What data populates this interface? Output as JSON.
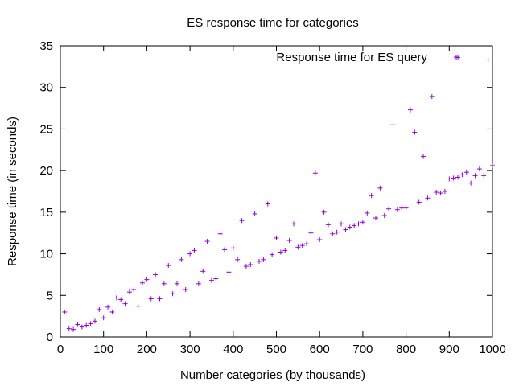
{
  "chart_data": {
    "type": "scatter",
    "title": "ES response time for categories",
    "xlabel": "Number categories (by thousands)",
    "ylabel": "Response time (in seconds)",
    "xlim": [
      0,
      1000
    ],
    "ylim": [
      0,
      35
    ],
    "x_ticks": [
      0,
      100,
      200,
      300,
      400,
      500,
      600,
      700,
      800,
      900,
      1000
    ],
    "y_ticks": [
      0,
      5,
      10,
      15,
      20,
      25,
      30,
      35
    ],
    "grid": false,
    "legend_position": "top-right",
    "series": [
      {
        "name": "Response time for ES query",
        "color": "#9400d3",
        "marker": "plus",
        "points": [
          [
            10,
            3.0
          ],
          [
            20,
            1.0
          ],
          [
            30,
            0.9
          ],
          [
            40,
            1.5
          ],
          [
            50,
            1.2
          ],
          [
            60,
            1.4
          ],
          [
            70,
            1.6
          ],
          [
            80,
            1.9
          ],
          [
            90,
            3.3
          ],
          [
            100,
            2.3
          ],
          [
            110,
            3.6
          ],
          [
            120,
            3.0
          ],
          [
            130,
            4.7
          ],
          [
            140,
            4.5
          ],
          [
            150,
            4.0
          ],
          [
            160,
            5.4
          ],
          [
            170,
            5.7
          ],
          [
            180,
            3.7
          ],
          [
            190,
            6.5
          ],
          [
            200,
            6.9
          ],
          [
            210,
            4.6
          ],
          [
            220,
            7.5
          ],
          [
            230,
            4.6
          ],
          [
            240,
            6.4
          ],
          [
            250,
            8.6
          ],
          [
            260,
            5.2
          ],
          [
            270,
            6.4
          ],
          [
            280,
            9.3
          ],
          [
            290,
            5.7
          ],
          [
            300,
            10.0
          ],
          [
            310,
            10.4
          ],
          [
            320,
            6.4
          ],
          [
            330,
            7.9
          ],
          [
            340,
            11.5
          ],
          [
            350,
            6.8
          ],
          [
            360,
            7.0
          ],
          [
            370,
            12.4
          ],
          [
            380,
            10.5
          ],
          [
            390,
            7.8
          ],
          [
            400,
            10.7
          ],
          [
            410,
            9.3
          ],
          [
            420,
            14.0
          ],
          [
            430,
            8.5
          ],
          [
            440,
            8.7
          ],
          [
            450,
            14.8
          ],
          [
            460,
            9.1
          ],
          [
            470,
            9.3
          ],
          [
            480,
            16.0
          ],
          [
            490,
            9.9
          ],
          [
            500,
            11.9
          ],
          [
            510,
            10.2
          ],
          [
            520,
            10.4
          ],
          [
            530,
            11.6
          ],
          [
            540,
            13.6
          ],
          [
            550,
            10.8
          ],
          [
            560,
            11.0
          ],
          [
            570,
            11.2
          ],
          [
            580,
            12.5
          ],
          [
            590,
            19.7
          ],
          [
            600,
            11.7
          ],
          [
            610,
            15.0
          ],
          [
            620,
            13.5
          ],
          [
            630,
            12.4
          ],
          [
            640,
            12.6
          ],
          [
            650,
            13.6
          ],
          [
            660,
            12.9
          ],
          [
            670,
            13.2
          ],
          [
            680,
            13.4
          ],
          [
            690,
            13.6
          ],
          [
            700,
            13.8
          ],
          [
            710,
            14.9
          ],
          [
            720,
            17.0
          ],
          [
            730,
            14.3
          ],
          [
            740,
            17.9
          ],
          [
            750,
            14.6
          ],
          [
            760,
            15.4
          ],
          [
            770,
            25.5
          ],
          [
            780,
            15.3
          ],
          [
            790,
            15.5
          ],
          [
            800,
            15.5
          ],
          [
            810,
            27.3
          ],
          [
            820,
            24.6
          ],
          [
            830,
            16.2
          ],
          [
            840,
            21.7
          ],
          [
            850,
            16.7
          ],
          [
            860,
            28.9
          ],
          [
            870,
            17.4
          ],
          [
            880,
            17.3
          ],
          [
            890,
            17.5
          ],
          [
            900,
            19.0
          ],
          [
            910,
            19.1
          ],
          [
            920,
            19.2
          ],
          [
            920,
            33.6
          ],
          [
            930,
            19.5
          ],
          [
            940,
            19.8
          ],
          [
            950,
            18.5
          ],
          [
            960,
            19.4
          ],
          [
            970,
            20.2
          ],
          [
            980,
            19.4
          ],
          [
            990,
            33.3
          ],
          [
            1000,
            20.6
          ]
        ]
      }
    ]
  }
}
